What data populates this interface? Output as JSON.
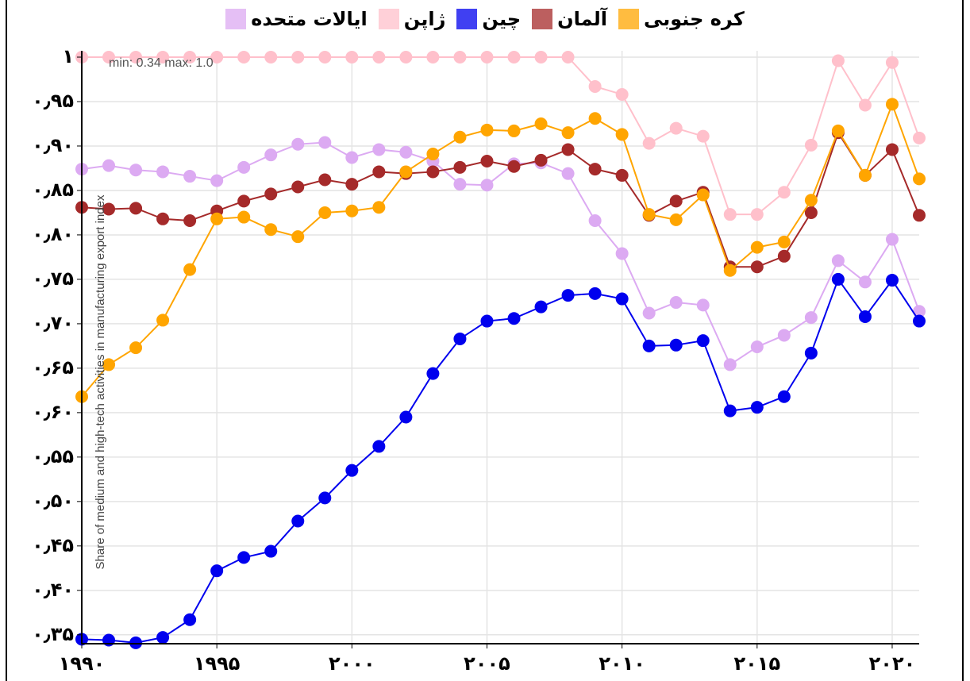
{
  "chart_data": {
    "type": "line",
    "ylabel": "Share of medium and high-tech activities in manufacturing export index",
    "annotation": "min: 0.34 max: 1.0",
    "x": [
      1990,
      1991,
      1992,
      1993,
      1994,
      1995,
      1996,
      1997,
      1998,
      1999,
      2000,
      2001,
      2002,
      2003,
      2004,
      2005,
      2006,
      2007,
      2008,
      2009,
      2010,
      2011,
      2012,
      2013,
      2014,
      2015,
      2016,
      2017,
      2018,
      2019,
      2020,
      2021
    ],
    "xlim": [
      1990,
      2021
    ],
    "xticks": [
      {
        "value": 1990,
        "label": "۱۹۹۰"
      },
      {
        "value": 1995,
        "label": "۱۹۹۵"
      },
      {
        "value": 2000,
        "label": "۲۰۰۰"
      },
      {
        "value": 2005,
        "label": "۲۰۰۵"
      },
      {
        "value": 2010,
        "label": "۲۰۱۰"
      },
      {
        "value": 2015,
        "label": "۲۰۱۵"
      },
      {
        "value": 2020,
        "label": "۲۰۲۰"
      }
    ],
    "ylim": [
      0.34,
      1.0
    ],
    "yticks": [
      {
        "value": 0.35,
        "label": "۰٫۳۵"
      },
      {
        "value": 0.4,
        "label": "۰٫۴۰"
      },
      {
        "value": 0.45,
        "label": "۰٫۴۵"
      },
      {
        "value": 0.5,
        "label": "۰٫۵۰"
      },
      {
        "value": 0.55,
        "label": "۰٫۵۵"
      },
      {
        "value": 0.6,
        "label": "۰٫۶۰"
      },
      {
        "value": 0.65,
        "label": "۰٫۶۵"
      },
      {
        "value": 0.7,
        "label": "۰٫۷۰"
      },
      {
        "value": 0.75,
        "label": "۰٫۷۵"
      },
      {
        "value": 0.8,
        "label": "۰٫۸۰"
      },
      {
        "value": 0.85,
        "label": "۰٫۸۵"
      },
      {
        "value": 0.9,
        "label": "۰٫۹۰"
      },
      {
        "value": 0.95,
        "label": "۰٫۹۵"
      },
      {
        "value": 1,
        "label": "۱"
      }
    ],
    "grid": true,
    "series": [
      {
        "name": "ایالات متحده",
        "color": "#dcaaf2",
        "values": [
          0.874,
          0.878,
          0.873,
          0.871,
          0.866,
          0.861,
          0.876,
          0.89,
          0.902,
          0.904,
          0.887,
          0.896,
          0.893,
          0.883,
          0.857,
          0.856,
          0.88,
          0.881,
          0.869,
          0.816,
          0.779,
          0.712,
          0.724,
          0.721,
          0.654,
          0.674,
          0.687,
          0.707,
          0.771,
          0.747,
          0.795,
          0.714
        ]
      },
      {
        "name": "ژاپن",
        "color": "#ffc0cb",
        "values": [
          1,
          1,
          1,
          1,
          1,
          1,
          1,
          1,
          1,
          1,
          1,
          1,
          1,
          1,
          1,
          1,
          1,
          1,
          1,
          0.967,
          0.958,
          0.903,
          0.92,
          0.911,
          0.823,
          0.823,
          0.848,
          0.901,
          0.996,
          0.946,
          0.994,
          0.909
        ]
      },
      {
        "name": "چین",
        "color": "#0000ee",
        "values": [
          0.345,
          0.344,
          0.341,
          0.347,
          0.367,
          0.422,
          0.437,
          0.444,
          0.478,
          0.504,
          0.535,
          0.562,
          0.595,
          0.644,
          0.683,
          0.703,
          0.706,
          0.719,
          0.732,
          0.734,
          0.728,
          0.675,
          0.676,
          0.681,
          0.602,
          0.606,
          0.618,
          0.667,
          0.75,
          0.708,
          0.749,
          0.703
        ]
      },
      {
        "name": "آلمان",
        "color": "#a52a2a",
        "values": [
          0.831,
          0.829,
          0.83,
          0.818,
          0.816,
          0.827,
          0.838,
          0.846,
          0.854,
          0.862,
          0.857,
          0.871,
          0.869,
          0.871,
          0.876,
          0.883,
          0.877,
          0.884,
          0.896,
          0.874,
          0.867,
          0.822,
          0.838,
          0.848,
          0.764,
          0.764,
          0.776,
          0.825,
          0.915,
          0.867,
          0.896,
          0.822
        ]
      },
      {
        "name": "کره جنوبی",
        "color": "#ffa500",
        "values": [
          0.618,
          0.654,
          0.673,
          0.704,
          0.761,
          0.818,
          0.82,
          0.806,
          0.798,
          0.825,
          0.827,
          0.831,
          0.871,
          0.891,
          0.91,
          0.918,
          0.917,
          0.925,
          0.915,
          0.931,
          0.913,
          0.823,
          0.817,
          0.845,
          0.76,
          0.786,
          0.792,
          0.839,
          0.917,
          0.867,
          0.947,
          0.863
        ]
      }
    ]
  }
}
